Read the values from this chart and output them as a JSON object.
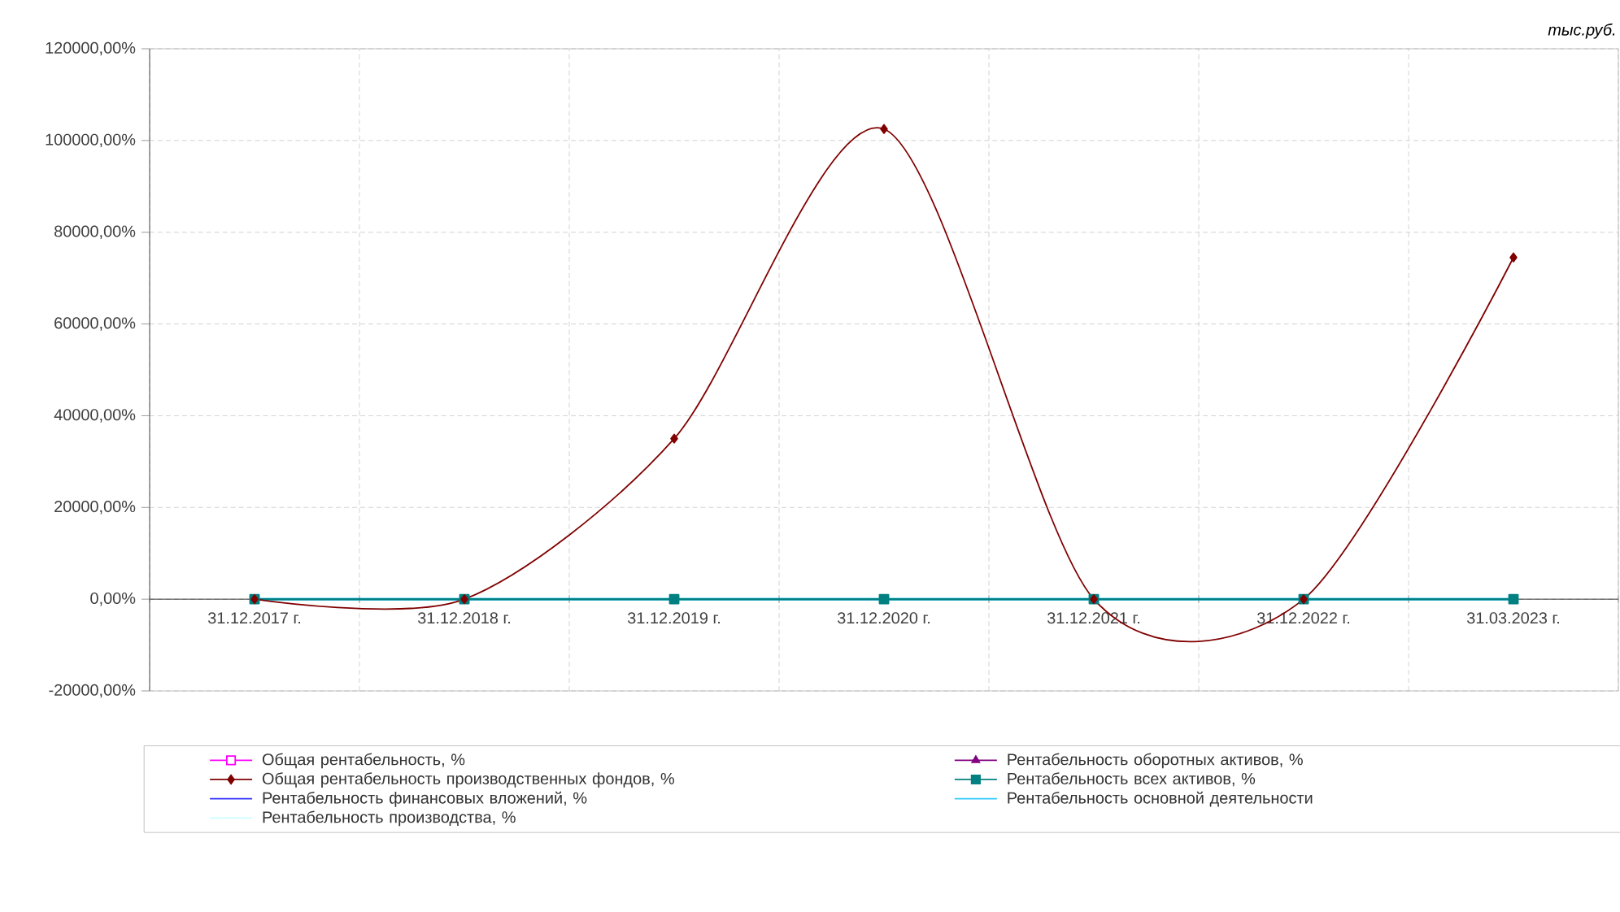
{
  "chart_data": {
    "type": "line",
    "annotations": [
      "тыс.руб."
    ],
    "categories": [
      "31.12.2017 г.",
      "31.12.2018 г.",
      "31.12.2019 г.",
      "31.12.2020 г.",
      "31.12.2021 г.",
      "31.12.2022 г.",
      "31.03.2023 г."
    ],
    "series": [
      {
        "name": "Общая рентабельность, %",
        "color": "#ff00ff",
        "marker": "square",
        "values": [
          null,
          null,
          null,
          null,
          null,
          null,
          null
        ]
      },
      {
        "name": "Рентабельность оборотных активов, %",
        "color": "#800080",
        "marker": "triangle",
        "values": [
          null,
          null,
          null,
          null,
          null,
          null,
          null
        ]
      },
      {
        "name": "Общая рентабельность производственных фондов, %",
        "color": "#800000",
        "marker": "diamond",
        "values": [
          0,
          0,
          35000,
          102500,
          0,
          0,
          74500
        ]
      },
      {
        "name": "Рентабельность всех активов, %",
        "color": "#008080",
        "marker": "square",
        "values": [
          0,
          0,
          0,
          0,
          0,
          0,
          0
        ]
      },
      {
        "name": "Рентабельность финансовых вложений, %",
        "color": "#3333ff",
        "marker": "none",
        "values": [
          null,
          null,
          null,
          null,
          null,
          null,
          null
        ]
      },
      {
        "name": "Рентабельность основной деятельности",
        "color": "#33ccff",
        "marker": "none",
        "values": [
          0,
          0,
          0,
          0,
          0,
          0,
          0
        ]
      },
      {
        "name": "Рентабельность производства, %",
        "color": "#ccffff",
        "marker": "none",
        "values": [
          null,
          null,
          null,
          null,
          null,
          null,
          null
        ]
      }
    ],
    "ylim": [
      -20000,
      120000
    ],
    "yticks": [
      {
        "value": -20000,
        "label": "-20000,00%"
      },
      {
        "value": 0,
        "label": "0,00%"
      },
      {
        "value": 20000,
        "label": "20000,00%"
      },
      {
        "value": 40000,
        "label": "40000,00%"
      },
      {
        "value": 60000,
        "label": "60000,00%"
      },
      {
        "value": 80000,
        "label": "80000,00%"
      },
      {
        "value": 100000,
        "label": "100000,00%"
      },
      {
        "value": 120000,
        "label": "120000,00%"
      }
    ],
    "grid": true,
    "legend": "bottom"
  }
}
